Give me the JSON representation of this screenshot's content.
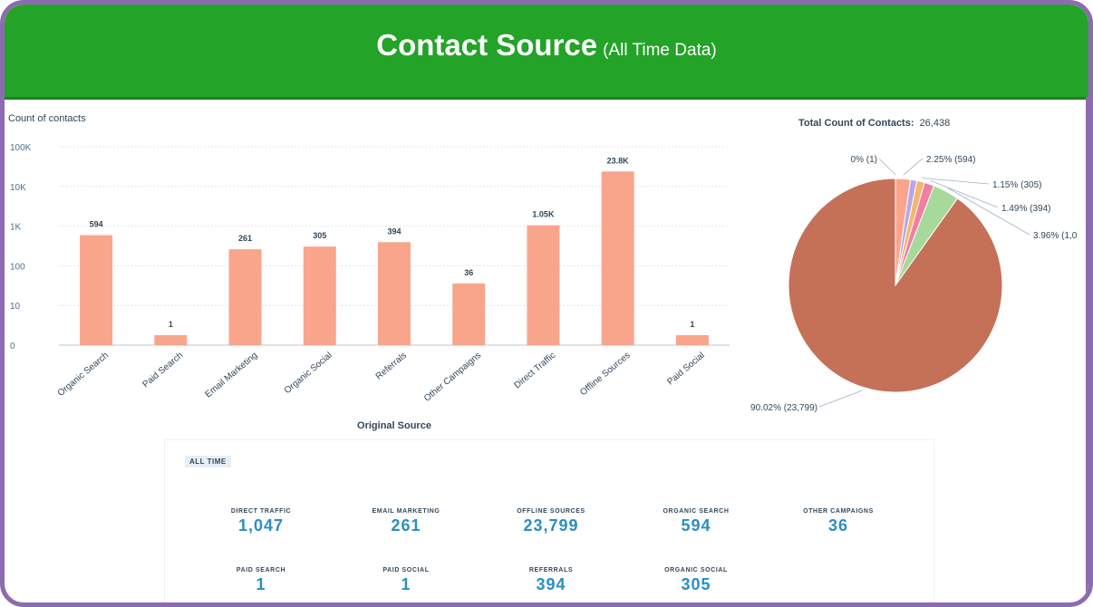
{
  "header": {
    "title": "Contact Source",
    "subtitle": "(All Time Data)"
  },
  "colors": {
    "header_bg": "#23a327",
    "bar": "#f9a58c",
    "border": "#8c6bb1",
    "kpi_value": "#2a8ec2"
  },
  "chart_data": [
    {
      "type": "bar",
      "title": "",
      "ylabel": "Count of contacts",
      "xlabel": "Original Source",
      "yscale": "log",
      "yticks": [
        "0",
        "10",
        "100",
        "1K",
        "10K",
        "100K"
      ],
      "categories": [
        "Organic Search",
        "Paid Search",
        "Email Marketing",
        "Organic Social",
        "Referrals",
        "Other Campaigns",
        "Direct Traffic",
        "Offline Sources",
        "Paid Social"
      ],
      "values": [
        594,
        1,
        261,
        305,
        394,
        36,
        1047,
        23799,
        1
      ],
      "labels": [
        "594",
        "1",
        "261",
        "305",
        "394",
        "36",
        "1.05K",
        "23.8K",
        "1"
      ]
    },
    {
      "type": "pie",
      "title_label": "Total Count of Contacts:",
      "title_value": "26,438",
      "slices": [
        {
          "label": "0% (1)",
          "value": 1,
          "color": "#c8c8c8"
        },
        {
          "label": "2.25% (594)",
          "value": 594,
          "color": "#f9a58c"
        },
        {
          "label": "",
          "value": 261,
          "color": "#b8a6e8"
        },
        {
          "label": "1.15% (305)",
          "value": 305,
          "color": "#f6b56b"
        },
        {
          "label": "1.49% (394)",
          "value": 394,
          "color": "#f07fa3"
        },
        {
          "label": "3.96% (1,0",
          "value": 1047,
          "color": "#a6d99a"
        },
        {
          "label": "90.02% (23,799)",
          "value": 23799,
          "color": "#c47158"
        }
      ]
    }
  ],
  "kpis": {
    "tag": "ALL TIME",
    "items": [
      {
        "label": "DIRECT TRAFFIC",
        "value": "1,047"
      },
      {
        "label": "EMAIL MARKETING",
        "value": "261"
      },
      {
        "label": "OFFLINE SOURCES",
        "value": "23,799"
      },
      {
        "label": "ORGANIC SEARCH",
        "value": "594"
      },
      {
        "label": "OTHER CAMPAIGNS",
        "value": "36"
      },
      {
        "label": "PAID SEARCH",
        "value": "1"
      },
      {
        "label": "PAID SOCIAL",
        "value": "1"
      },
      {
        "label": "REFERRALS",
        "value": "394"
      },
      {
        "label": "ORGANIC SOCIAL",
        "value": "305"
      }
    ]
  }
}
